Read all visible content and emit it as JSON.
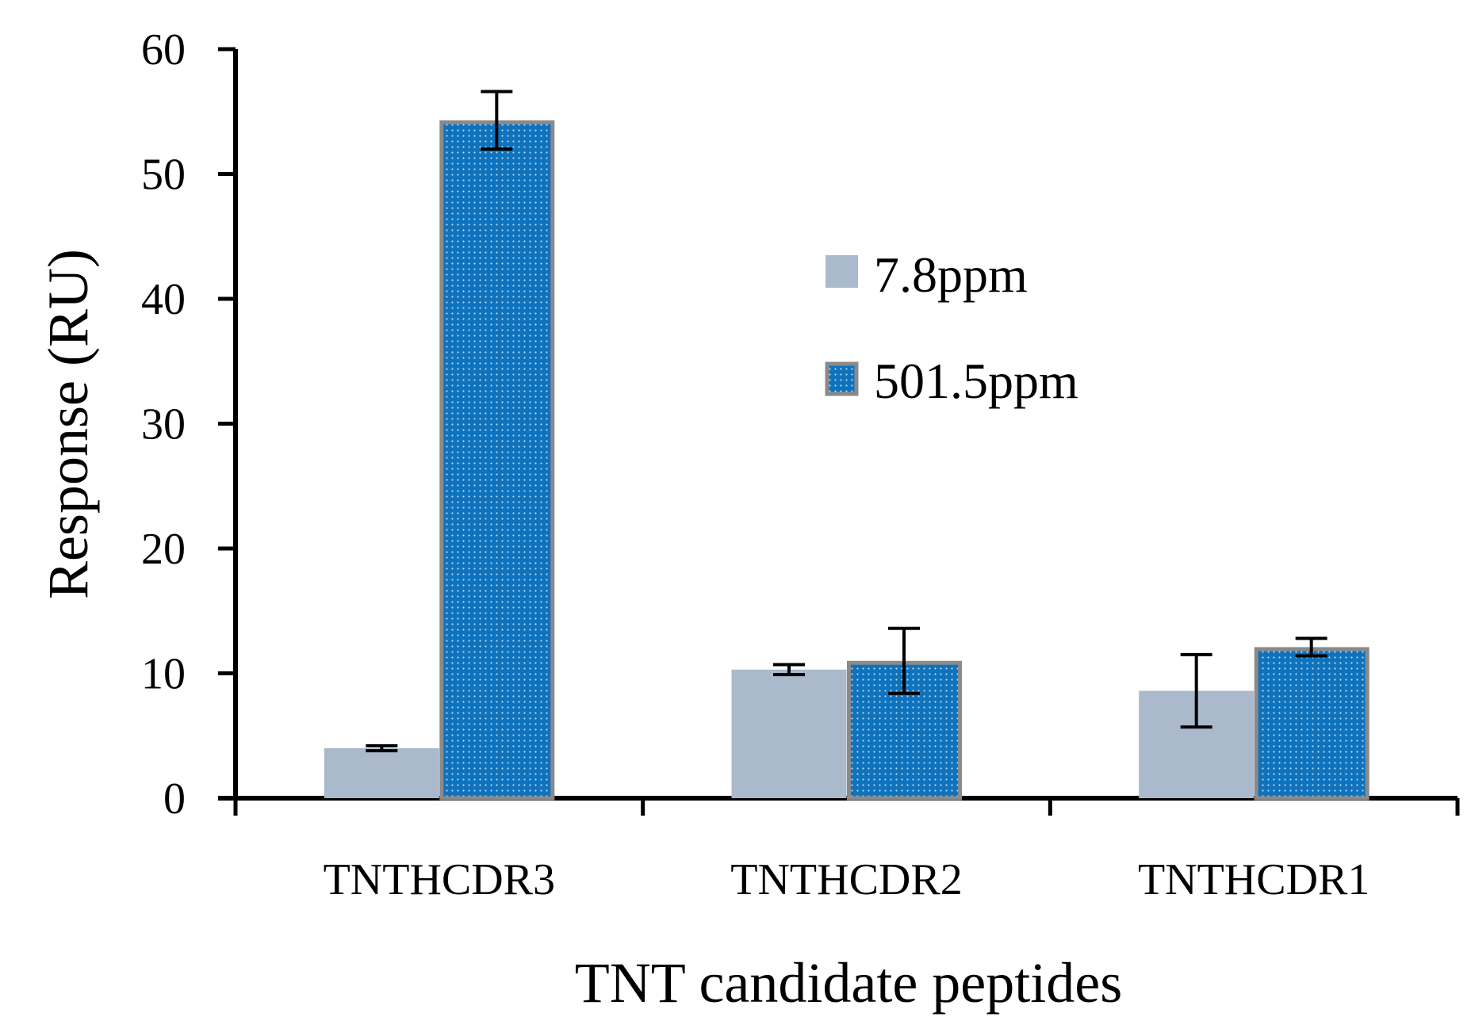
{
  "chart_data": {
    "type": "bar",
    "title": "",
    "xlabel": "TNT candidate peptides",
    "ylabel": "Response (RU)",
    "categories": [
      "TNTHCDR3",
      "TNTHCDR2",
      "TNTHCDR1"
    ],
    "ylim": [
      0,
      60
    ],
    "yticks": [
      0,
      10,
      20,
      30,
      40,
      50,
      60
    ],
    "grid": false,
    "legend_position": "center-right",
    "series": [
      {
        "name": "7.8ppm",
        "values": [
          4.0,
          10.3,
          8.6
        ],
        "errors": [
          0.2,
          0.4,
          2.9
        ],
        "color": "#abb9cc"
      },
      {
        "name": "501.5ppm",
        "values": [
          54.3,
          11.0,
          12.1
        ],
        "errors": [
          2.3,
          2.6,
          0.7
        ],
        "color": "#0f72bd",
        "edge_color": "#8a8a8a",
        "pattern": "dotted"
      }
    ]
  }
}
